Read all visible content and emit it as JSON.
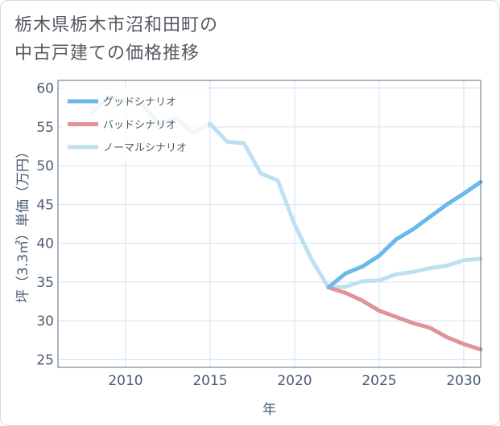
{
  "title_lines": [
    "栃木県栃木市沼和田町の",
    "中古戸建ての価格推移"
  ],
  "chart_data": {
    "type": "line",
    "xlabel": "年",
    "ylabel": "坪（3.3㎡）単価（万円）",
    "xlim": [
      2006,
      2031
    ],
    "ylim": [
      24,
      61
    ],
    "x_ticks": [
      2010,
      2015,
      2020,
      2025,
      2030
    ],
    "y_ticks": [
      25,
      30,
      35,
      40,
      45,
      50,
      55,
      60
    ],
    "grid": true,
    "legend_position": "top-left",
    "series": [
      {
        "name": "グッドシナリオ",
        "color": "#6bb8ea",
        "x": [
          2022,
          2023,
          2024,
          2025,
          2026,
          2027,
          2028,
          2029,
          2030,
          2031
        ],
        "y": [
          34.3,
          36.1,
          37.0,
          38.4,
          40.5,
          41.8,
          43.4,
          45.0,
          46.4,
          47.9
        ]
      },
      {
        "name": "バッドシナリオ",
        "color": "#e0939a",
        "x": [
          2022,
          2023,
          2024,
          2025,
          2026,
          2027,
          2028,
          2029,
          2030,
          2031
        ],
        "y": [
          34.3,
          33.6,
          32.6,
          31.3,
          30.5,
          29.7,
          29.1,
          27.9,
          27.0,
          26.3
        ]
      },
      {
        "name": "ノーマルシナリオ",
        "color": "#bfe0f0",
        "x": [
          2008,
          2009,
          2010,
          2011,
          2012,
          2013,
          2014,
          2015,
          2016,
          2017,
          2018,
          2019,
          2020,
          2021,
          2022,
          2023,
          2024,
          2025,
          2026,
          2027,
          2028,
          2029,
          2030,
          2031
        ],
        "y": [
          56.8,
          58.9,
          58.4,
          57.9,
          55.3,
          56.2,
          54.2,
          55.4,
          53.1,
          52.9,
          49.0,
          48.1,
          42.4,
          37.9,
          34.3,
          34.4,
          35.1,
          35.2,
          36.0,
          36.3,
          36.8,
          37.1,
          37.8,
          38.0
        ]
      }
    ]
  }
}
